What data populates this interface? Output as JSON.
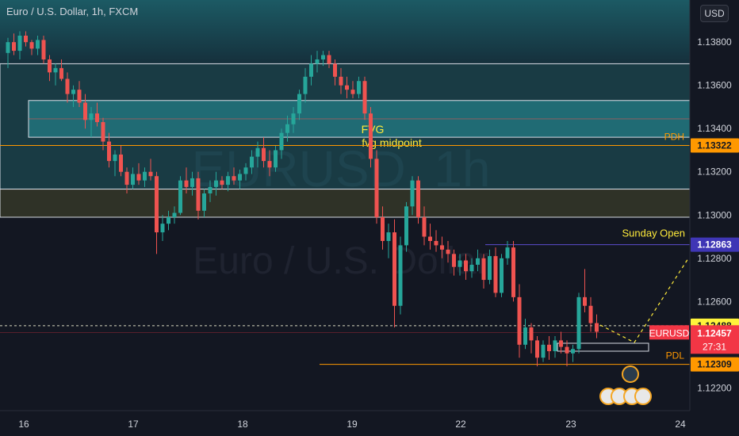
{
  "header": {
    "title": "Euro / U.S. Dollar, 1h, FXCM"
  },
  "currency_button": {
    "label": "USD"
  },
  "watermark": {
    "symbol": "EURUSD, 1h",
    "name": "Euro / U.S. Dollar"
  },
  "colors": {
    "background": "#131722",
    "bullish": "#26a69a",
    "bearish": "#ef5350",
    "zone_teal": "#1b5c62",
    "zone_dark": "#2f3227",
    "pdh_line": "#ff9800",
    "sunday_line": "#5b4ecf",
    "current_price_tag": "#f23645",
    "highlight_tag": "#fff33b"
  },
  "chart_data": {
    "type": "candlestick",
    "title": "Euro / U.S. Dollar, 1h, FXCM",
    "x_ticks": [
      "16",
      "17",
      "18",
      "19",
      "22",
      "23",
      "24"
    ],
    "y_ticks": [
      "1.13800",
      "1.13600",
      "1.13400",
      "1.13200",
      "1.13000",
      "1.12800",
      "1.12600",
      "1.12200"
    ],
    "y_range": [
      1.12095,
      1.13995
    ],
    "grid": false,
    "zones": [
      {
        "name": "upper-zone",
        "y_top": 1.137,
        "y_bottom": 1.1312
      },
      {
        "name": "fvg-box",
        "y_top": 1.1353,
        "y_bottom": 1.1336,
        "label": "FVG",
        "midpoint_label": "fvg midpoint",
        "midpoint": 1.13445
      },
      {
        "name": "lower-zone",
        "y_top": 1.1312,
        "y_bottom": 1.1299
      }
    ],
    "levels": [
      {
        "name": "PDH",
        "label": "PDH",
        "value": 1.13322,
        "tag": "1.13322"
      },
      {
        "name": "sunday-open",
        "label": "Sunday Open",
        "value": 1.12863,
        "tag": "1.12863"
      },
      {
        "name": "dashed-level",
        "label": "",
        "value": 1.12488,
        "tag": "1.12488"
      },
      {
        "name": "PDL",
        "label": "PDL",
        "value": 1.12309,
        "tag": "1.12309"
      }
    ],
    "current_price": {
      "symbol": "EURUSD",
      "value": "1.12457",
      "countdown": "27:31",
      "v": 1.12457
    },
    "candles": [
      [
        0,
        1.1375,
        1.1382,
        1.1368,
        1.138
      ],
      [
        1,
        1.138,
        1.1384,
        1.1374,
        1.1376
      ],
      [
        2,
        1.1376,
        1.1385,
        1.1372,
        1.1383
      ],
      [
        3,
        1.1383,
        1.1385,
        1.1378,
        1.138
      ],
      [
        4,
        1.138,
        1.1381,
        1.1374,
        1.1377
      ],
      [
        5,
        1.1377,
        1.1383,
        1.1374,
        1.1381
      ],
      [
        6,
        1.1381,
        1.1383,
        1.137,
        1.1372
      ],
      [
        7,
        1.1372,
        1.1374,
        1.1362,
        1.1366
      ],
      [
        8,
        1.1366,
        1.137,
        1.136,
        1.1368
      ],
      [
        9,
        1.1368,
        1.1372,
        1.1362,
        1.1363
      ],
      [
        10,
        1.1363,
        1.1366,
        1.1352,
        1.1356
      ],
      [
        11,
        1.1356,
        1.136,
        1.135,
        1.1358
      ],
      [
        12,
        1.1358,
        1.1362,
        1.135,
        1.1352
      ],
      [
        13,
        1.1352,
        1.1356,
        1.134,
        1.1344
      ],
      [
        14,
        1.1344,
        1.135,
        1.1336,
        1.1347
      ],
      [
        15,
        1.1347,
        1.1352,
        1.1341,
        1.1343
      ],
      [
        16,
        1.1343,
        1.1345,
        1.133,
        1.1334
      ],
      [
        17,
        1.1334,
        1.1338,
        1.1322,
        1.1325
      ],
      [
        18,
        1.1325,
        1.133,
        1.1318,
        1.1328
      ],
      [
        19,
        1.1328,
        1.1332,
        1.1318,
        1.132
      ],
      [
        20,
        1.132,
        1.1322,
        1.131,
        1.1314
      ],
      [
        21,
        1.1314,
        1.1322,
        1.1312,
        1.1319
      ],
      [
        22,
        1.1319,
        1.1324,
        1.1314,
        1.1316
      ],
      [
        23,
        1.1316,
        1.1322,
        1.1313,
        1.132
      ],
      [
        24,
        1.132,
        1.1326,
        1.1316,
        1.1318
      ],
      [
        25,
        1.1318,
        1.132,
        1.1282,
        1.1292
      ],
      [
        26,
        1.1292,
        1.13,
        1.1288,
        1.1296
      ],
      [
        27,
        1.1296,
        1.1302,
        1.1293,
        1.1299
      ],
      [
        28,
        1.1299,
        1.1304,
        1.1296,
        1.1301
      ],
      [
        29,
        1.1301,
        1.1318,
        1.13,
        1.1316
      ],
      [
        30,
        1.1316,
        1.1322,
        1.131,
        1.1313
      ],
      [
        31,
        1.1313,
        1.132,
        1.1309,
        1.1317
      ],
      [
        32,
        1.1317,
        1.132,
        1.1298,
        1.1302
      ],
      [
        33,
        1.1302,
        1.1312,
        1.1299,
        1.131
      ],
      [
        34,
        1.131,
        1.1316,
        1.1306,
        1.1313
      ],
      [
        35,
        1.1313,
        1.132,
        1.1309,
        1.1316
      ],
      [
        36,
        1.1316,
        1.1318,
        1.1312,
        1.1314
      ],
      [
        37,
        1.1314,
        1.132,
        1.1311,
        1.1318
      ],
      [
        38,
        1.1318,
        1.1322,
        1.1314,
        1.1316
      ],
      [
        39,
        1.1316,
        1.1321,
        1.1312,
        1.1319
      ],
      [
        40,
        1.1319,
        1.1324,
        1.1316,
        1.1322
      ],
      [
        41,
        1.1322,
        1.133,
        1.1319,
        1.1327
      ],
      [
        42,
        1.1327,
        1.1334,
        1.1322,
        1.1331
      ],
      [
        43,
        1.1331,
        1.1336,
        1.1322,
        1.1325
      ],
      [
        44,
        1.1325,
        1.133,
        1.1318,
        1.1322
      ],
      [
        45,
        1.1322,
        1.1332,
        1.132,
        1.133
      ],
      [
        46,
        1.133,
        1.134,
        1.1326,
        1.1338
      ],
      [
        47,
        1.1338,
        1.1346,
        1.1334,
        1.1342
      ],
      [
        48,
        1.1342,
        1.135,
        1.1338,
        1.1347
      ],
      [
        49,
        1.1347,
        1.1358,
        1.1344,
        1.1356
      ],
      [
        50,
        1.1356,
        1.1368,
        1.1352,
        1.1364
      ],
      [
        51,
        1.1364,
        1.1374,
        1.136,
        1.137
      ],
      [
        52,
        1.137,
        1.1376,
        1.1366,
        1.1372
      ],
      [
        53,
        1.1372,
        1.1376,
        1.1369,
        1.1374
      ],
      [
        54,
        1.1374,
        1.1376,
        1.1368,
        1.137
      ],
      [
        55,
        1.137,
        1.1372,
        1.136,
        1.1364
      ],
      [
        56,
        1.1364,
        1.1368,
        1.1356,
        1.136
      ],
      [
        57,
        1.136,
        1.1364,
        1.1354,
        1.1358
      ],
      [
        58,
        1.1358,
        1.1362,
        1.1354,
        1.1356
      ],
      [
        59,
        1.1356,
        1.1364,
        1.1354,
        1.1362
      ],
      [
        60,
        1.1362,
        1.1364,
        1.1344,
        1.1347
      ],
      [
        61,
        1.1347,
        1.135,
        1.1322,
        1.1326
      ],
      [
        62,
        1.1326,
        1.133,
        1.1296,
        1.1299
      ],
      [
        63,
        1.1299,
        1.1304,
        1.1284,
        1.1288
      ],
      [
        64,
        1.1288,
        1.1296,
        1.128,
        1.1292
      ],
      [
        65,
        1.1292,
        1.1298,
        1.1248,
        1.1258
      ],
      [
        66,
        1.1258,
        1.129,
        1.1254,
        1.1286
      ],
      [
        67,
        1.1286,
        1.1306,
        1.1283,
        1.1304
      ],
      [
        68,
        1.1304,
        1.1318,
        1.13,
        1.1316
      ],
      [
        69,
        1.1316,
        1.1318,
        1.1296,
        1.1299
      ],
      [
        70,
        1.1299,
        1.1304,
        1.1286,
        1.129
      ],
      [
        71,
        1.129,
        1.1296,
        1.1284,
        1.1288
      ],
      [
        72,
        1.1288,
        1.1293,
        1.1283,
        1.1286
      ],
      [
        73,
        1.1286,
        1.129,
        1.128,
        1.1284
      ],
      [
        74,
        1.1284,
        1.1288,
        1.1278,
        1.1282
      ],
      [
        75,
        1.1282,
        1.1284,
        1.1272,
        1.1276
      ],
      [
        76,
        1.1276,
        1.1282,
        1.1272,
        1.1279
      ],
      [
        77,
        1.1279,
        1.1282,
        1.127,
        1.1274
      ],
      [
        78,
        1.1274,
        1.128,
        1.1271,
        1.1277
      ],
      [
        79,
        1.1277,
        1.1284,
        1.1274,
        1.128
      ],
      [
        80,
        1.128,
        1.1282,
        1.1266,
        1.127
      ],
      [
        81,
        1.127,
        1.1284,
        1.1268,
        1.1281
      ],
      [
        82,
        1.1281,
        1.1285,
        1.1262,
        1.1264
      ],
      [
        83,
        1.1264,
        1.1282,
        1.1262,
        1.128
      ],
      [
        84,
        1.128,
        1.1288,
        1.1277,
        1.1285
      ],
      [
        85,
        1.1285,
        1.1288,
        1.126,
        1.1262
      ],
      [
        86,
        1.1262,
        1.1268,
        1.1234,
        1.124
      ],
      [
        87,
        1.124,
        1.1252,
        1.1238,
        1.1248
      ],
      [
        88,
        1.1248,
        1.125,
        1.1236,
        1.1242
      ],
      [
        89,
        1.1242,
        1.1244,
        1.123,
        1.1234
      ],
      [
        90,
        1.1234,
        1.1242,
        1.1232,
        1.124
      ],
      [
        91,
        1.124,
        1.1244,
        1.1233,
        1.1237
      ],
      [
        92,
        1.1237,
        1.1244,
        1.1234,
        1.1242
      ],
      [
        93,
        1.1242,
        1.1246,
        1.1236,
        1.1239
      ],
      [
        94,
        1.1239,
        1.1242,
        1.123,
        1.1236
      ],
      [
        95,
        1.1236,
        1.124,
        1.1232,
        1.1238
      ],
      [
        96,
        1.1238,
        1.1264,
        1.1236,
        1.1262
      ],
      [
        97,
        1.1262,
        1.1275,
        1.1255,
        1.1258
      ],
      [
        98,
        1.1258,
        1.1262,
        1.1246,
        1.125
      ],
      [
        99,
        1.125,
        1.1254,
        1.1243,
        1.1246
      ]
    ]
  }
}
